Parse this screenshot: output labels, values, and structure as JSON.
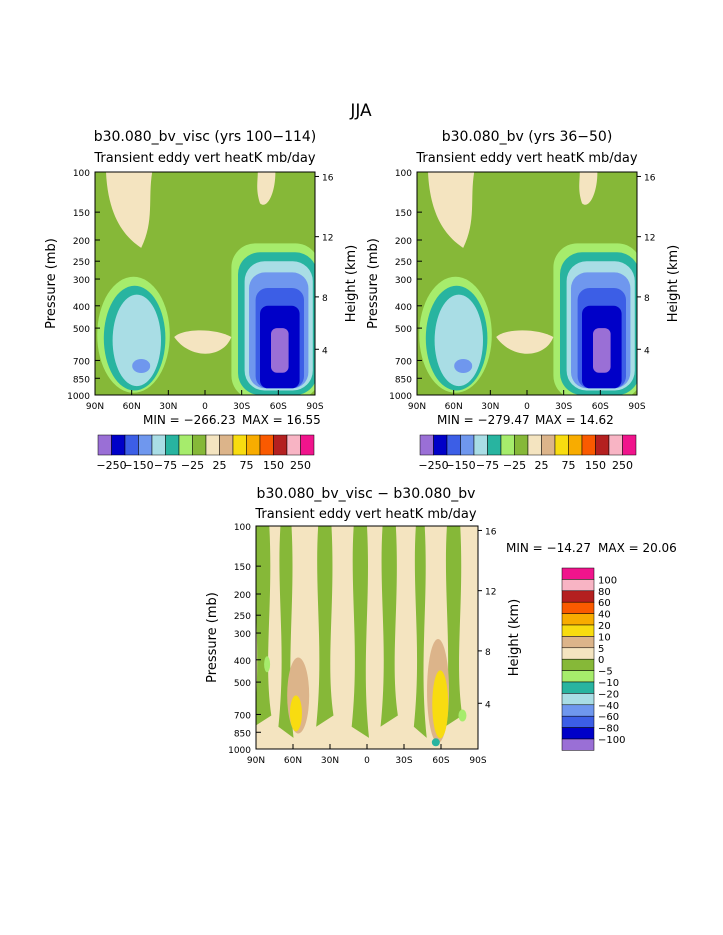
{
  "page": {
    "title": "JJA"
  },
  "colors": {
    "levels": [
      "#9a6fd6",
      "#0000c8",
      "#3c5ee6",
      "#6f97ee",
      "#a9dde5",
      "#28b4a0",
      "#a6ec6c",
      "#86b838",
      "#f4e4c0",
      "#dcb48a",
      "#f8dc10",
      "#f8ac00",
      "#fa5a00",
      "#b42020",
      "#f8b4c4",
      "#f0148c"
    ]
  },
  "chart_data": [
    {
      "type": "heatmap",
      "title": "b30.080_bv_visc (yrs 100−114)",
      "subtitle": "Transient eddy vert heatK mb/day",
      "xlabel": "",
      "ylabel": "Pressure (mb)",
      "y2label": "Height (km)",
      "x_ticks": [
        "90N",
        "60N",
        "30N",
        "0",
        "30S",
        "60S",
        "90S"
      ],
      "y_ticks": [
        "100",
        "150",
        "200",
        "250",
        "300",
        "400",
        "500",
        "700",
        "850",
        "1000"
      ],
      "y2_ticks": [
        "16",
        "12",
        "8",
        "4"
      ],
      "min_label": "MIN = −266.23",
      "max_label": "MAX = 16.55",
      "min": -266.23,
      "max": 16.55
    },
    {
      "type": "heatmap",
      "title": "b30.080_bv (yrs 36−50)",
      "subtitle": "Transient eddy vert heatK mb/day",
      "xlabel": "",
      "ylabel": "Pressure (mb)",
      "y2label": "Height (km)",
      "x_ticks": [
        "90N",
        "60N",
        "30N",
        "0",
        "30S",
        "60S",
        "90S"
      ],
      "y_ticks": [
        "100",
        "150",
        "200",
        "250",
        "300",
        "400",
        "500",
        "700",
        "850",
        "1000"
      ],
      "y2_ticks": [
        "16",
        "12",
        "8",
        "4"
      ],
      "min_label": "MIN = −279.47",
      "max_label": "MAX = 14.62",
      "min": -279.47,
      "max": 14.62
    },
    {
      "type": "heatmap",
      "title": "b30.080_bv_visc − b30.080_bv",
      "subtitle": "Transient eddy vert heatK mb/day",
      "xlabel": "",
      "ylabel": "Pressure (mb)",
      "y2label": "Height (km)",
      "x_ticks": [
        "90N",
        "60N",
        "30N",
        "0",
        "30S",
        "60S",
        "90S"
      ],
      "y_ticks": [
        "100",
        "150",
        "200",
        "250",
        "300",
        "400",
        "500",
        "700",
        "850",
        "1000"
      ],
      "y2_ticks": [
        "16",
        "12",
        "8",
        "4"
      ],
      "min_label": "MIN = −14.27",
      "max_label": "MAX = 20.06",
      "min": -14.27,
      "max": 20.06
    }
  ],
  "colorbars": {
    "top": {
      "labels": [
        "−250",
        "−150",
        "−75",
        "−25",
        "25",
        "75",
        "150",
        "250"
      ]
    },
    "diff": {
      "labels": [
        "100",
        "80",
        "60",
        "40",
        "20",
        "10",
        "5",
        "0",
        "−5",
        "−10",
        "−20",
        "−40",
        "−60",
        "−80",
        "−100"
      ]
    }
  }
}
